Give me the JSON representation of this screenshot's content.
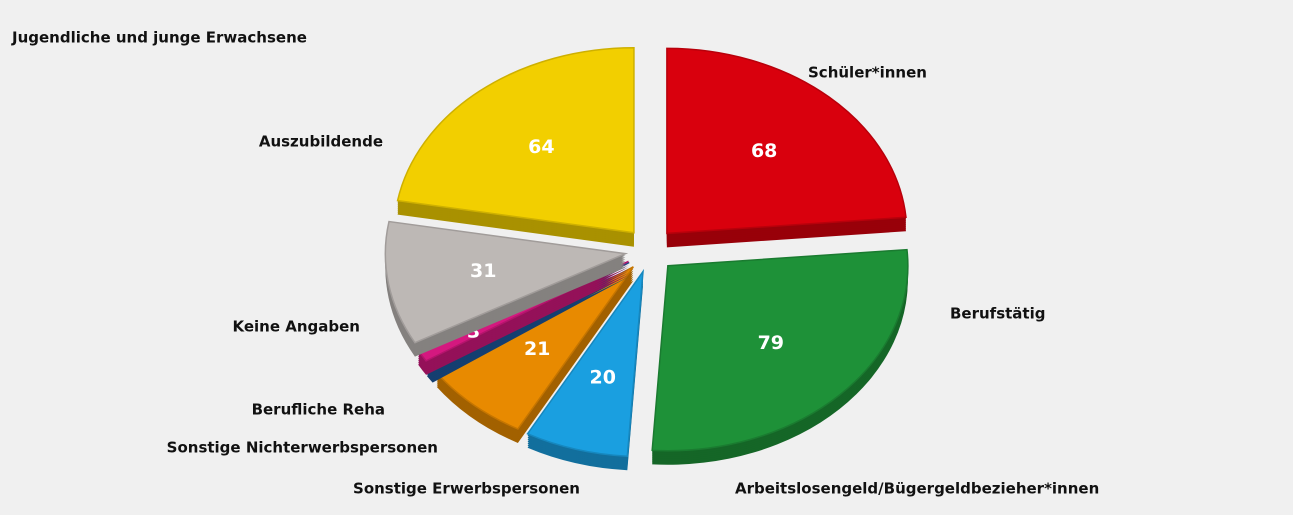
{
  "chart_data": {
    "type": "pie",
    "title": "Jugendliche und junge Erwachsene",
    "categories": [
      "Schüler*innen",
      "Berufstätig",
      "Arbeitslosengeld/Bügergeldbezieher*innen",
      "Sonstige Erwerbspersonen",
      "Sonstige Nichterwerbspersonen",
      "Berufliche Reha",
      "Keine Angaben",
      "Auszubildende"
    ],
    "values": [
      68,
      79,
      20,
      21,
      2,
      3,
      31,
      64
    ],
    "colors": [
      "#d9000d",
      "#1e9138",
      "#1a9fe0",
      "#e88a00",
      "#1e5aa0",
      "#d4187f",
      "#bdb8b5",
      "#f2cf00"
    ]
  }
}
